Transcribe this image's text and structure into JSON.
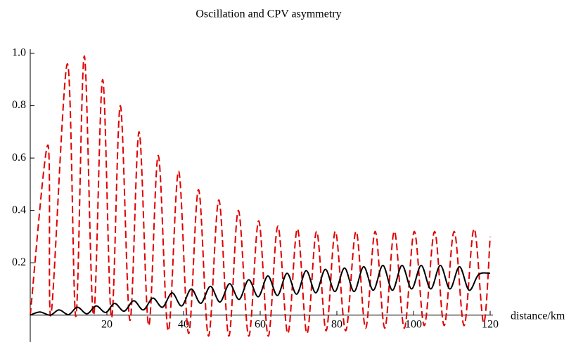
{
  "chart_data": {
    "type": "line",
    "title": "Oscillation and CPV asymmetry",
    "xlabel": "distance/km",
    "xlim": [
      0,
      120
    ],
    "ylim": [
      -0.1,
      1.0
    ],
    "xticks": [
      20,
      40,
      60,
      80,
      100,
      120
    ],
    "yticks": [
      0.2,
      0.4,
      0.6,
      0.8,
      {
        "value": 1,
        "label": "1.0"
      }
    ],
    "series": [
      {
        "color": "#e00000",
        "dashed": true,
        "x": [
          0,
          4.6,
          5.4,
          9.7,
          11.9,
          14.1,
          16.5,
          18.9,
          21.2,
          23.5,
          26,
          28.4,
          30.9,
          33.4,
          36,
          38.7,
          41.3,
          43.9,
          46.5,
          49.2,
          51.8,
          54.3,
          57,
          59.6,
          62.1,
          64.6,
          67.2,
          69.7,
          72.2,
          74.7,
          77.2,
          79.6,
          82.3,
          85,
          87.5,
          90,
          92.5,
          95,
          97.6,
          100.2,
          102.8,
          105.5,
          108,
          110.6,
          113.2,
          115.8,
          118.3,
          120
        ],
        "values": [
          0,
          0.65,
          0,
          0.96,
          -0.005,
          0.99,
          0,
          0.9,
          -0.01,
          0.8,
          -0.02,
          0.7,
          -0.04,
          0.61,
          -0.06,
          0.55,
          -0.07,
          0.48,
          -0.08,
          0.44,
          -0.08,
          0.4,
          -0.08,
          0.36,
          -0.08,
          0.34,
          -0.07,
          0.33,
          -0.07,
          0.32,
          -0.06,
          0.32,
          -0.06,
          0.32,
          -0.05,
          0.32,
          -0.05,
          0.32,
          -0.05,
          0.32,
          -0.04,
          0.32,
          -0.04,
          0.32,
          -0.04,
          0.33,
          -0.03,
          0.3
        ]
      },
      {
        "color": "#000000",
        "dashed": false,
        "x": [
          0,
          2.5,
          5.2,
          7.5,
          10,
          12.3,
          14.8,
          17.2,
          19.7,
          22,
          24.5,
          27,
          29.5,
          32,
          34.5,
          37,
          39.5,
          42,
          44.5,
          47,
          49.5,
          52,
          54.5,
          57,
          59.5,
          62,
          64.5,
          67,
          69.5,
          72,
          74.5,
          77,
          79.5,
          82,
          84.5,
          87,
          89.5,
          92,
          94.5,
          97,
          99.5,
          102,
          104.5,
          107,
          109.5,
          112,
          114.5,
          117,
          120
        ],
        "values": [
          0,
          0.012,
          0,
          0.02,
          0.002,
          0.03,
          0.005,
          0.035,
          0.01,
          0.045,
          0.015,
          0.055,
          0.02,
          0.065,
          0.03,
          0.085,
          0.035,
          0.1,
          0.045,
          0.11,
          0.05,
          0.12,
          0.06,
          0.135,
          0.07,
          0.15,
          0.075,
          0.16,
          0.08,
          0.17,
          0.085,
          0.175,
          0.09,
          0.18,
          0.09,
          0.185,
          0.095,
          0.19,
          0.095,
          0.19,
          0.1,
          0.19,
          0.1,
          0.19,
          0.1,
          0.185,
          0.095,
          0.155,
          0.16
        ]
      }
    ]
  }
}
